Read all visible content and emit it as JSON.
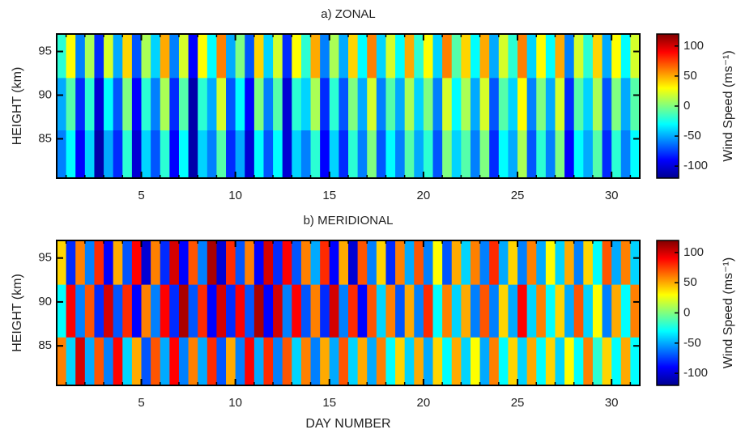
{
  "chart_data": [
    {
      "type": "heatmap",
      "title": "a) ZONAL",
      "ylabel": "HEIGHT (km)",
      "colorbar_label": "Wind Speed (ms⁻¹)",
      "colormap": "jet",
      "xlim": [
        0.5,
        31.5
      ],
      "ylim": [
        80.5,
        97
      ],
      "clim": [
        -120,
        120
      ],
      "xticks": [
        5,
        10,
        15,
        20,
        25,
        30
      ],
      "xminorticks": [
        1,
        2,
        3,
        4,
        5,
        6,
        7,
        8,
        9,
        10,
        11,
        12,
        13,
        14,
        15,
        16,
        17,
        18,
        19,
        20,
        21,
        22,
        23,
        24,
        25,
        26,
        27,
        28,
        29,
        30,
        31
      ],
      "yticks": [
        85,
        90,
        95
      ],
      "cticks": [
        -100,
        -50,
        0,
        50,
        100
      ],
      "x": [
        0.75,
        1.25,
        1.75,
        2.25,
        2.75,
        3.25,
        3.75,
        4.25,
        4.75,
        5.25,
        5.75,
        6.25,
        6.75,
        7.25,
        7.75,
        8.25,
        8.75,
        9.25,
        9.75,
        10.25,
        10.75,
        11.25,
        11.75,
        12.25,
        12.75,
        13.25,
        13.75,
        14.25,
        14.75,
        15.25,
        15.75,
        16.25,
        16.75,
        17.25,
        17.75,
        18.25,
        18.75,
        19.25,
        19.75,
        20.25,
        20.75,
        21.25,
        21.75,
        22.25,
        22.75,
        23.25,
        23.75,
        24.25,
        24.75,
        25.25,
        25.75,
        26.25,
        26.75,
        27.25,
        27.75,
        28.25,
        28.75,
        29.25,
        29.75,
        30.25,
        30.75,
        31.25
      ],
      "y": [
        83,
        89,
        95
      ],
      "z": [
        [
          -60,
          -30,
          -90,
          -40,
          -110,
          -50,
          -80,
          -20,
          -100,
          -40,
          -70,
          -20,
          -90,
          -30,
          -110,
          -40,
          -60,
          -10,
          -80,
          -50,
          -100,
          -30,
          -70,
          -30,
          -100,
          -40,
          -60,
          -20,
          -90,
          -40,
          -80,
          -20,
          -60,
          0,
          -70,
          -30,
          -60,
          -10,
          -50,
          -20,
          -70,
          0,
          -40,
          -10,
          -60,
          0,
          -80,
          -30,
          -50,
          10,
          -70,
          -20,
          -60,
          0,
          -90,
          -30,
          -50,
          -10,
          -80,
          -20,
          -60,
          -30
        ],
        [
          -50,
          -10,
          -80,
          -20,
          -100,
          -30,
          -70,
          0,
          -90,
          -20,
          -60,
          10,
          -80,
          -10,
          -110,
          -20,
          -50,
          20,
          -70,
          -30,
          -90,
          0,
          -60,
          -10,
          -100,
          -20,
          -40,
          10,
          -80,
          -20,
          -70,
          0,
          -50,
          20,
          -60,
          -10,
          -50,
          10,
          -40,
          0,
          -60,
          20,
          -30,
          10,
          -50,
          20,
          -70,
          -10,
          -40,
          30,
          -60,
          0,
          -50,
          20,
          -80,
          -10,
          -40,
          10,
          -70,
          0,
          -50,
          -10
        ],
        [
          -20,
          30,
          -60,
          10,
          -80,
          20,
          -50,
          40,
          -70,
          10,
          -40,
          50,
          -60,
          20,
          -90,
          30,
          -30,
          60,
          -50,
          0,
          -70,
          40,
          -40,
          20,
          -80,
          30,
          -20,
          50,
          -60,
          10,
          -50,
          40,
          -30,
          60,
          -40,
          20,
          -30,
          50,
          -20,
          30,
          -40,
          60,
          -10,
          40,
          -30,
          50,
          -50,
          20,
          -20,
          60,
          -40,
          30,
          -30,
          50,
          -60,
          20,
          -20,
          40,
          -50,
          30,
          -30,
          20
        ]
      ]
    },
    {
      "type": "heatmap",
      "title": "b) MERIDIONAL",
      "ylabel": "HEIGHT (km)",
      "xlabel": "DAY NUMBER",
      "colorbar_label": "Wind Speed (ms⁻¹)",
      "colormap": "jet",
      "xlim": [
        0.5,
        31.5
      ],
      "ylim": [
        80.5,
        97
      ],
      "clim": [
        -120,
        120
      ],
      "xticks": [
        5,
        10,
        15,
        20,
        25,
        30
      ],
      "xminorticks": [
        1,
        2,
        3,
        4,
        5,
        6,
        7,
        8,
        9,
        10,
        11,
        12,
        13,
        14,
        15,
        16,
        17,
        18,
        19,
        20,
        21,
        22,
        23,
        24,
        25,
        26,
        27,
        28,
        29,
        30,
        31
      ],
      "yticks": [
        85,
        90,
        95
      ],
      "cticks": [
        -100,
        -50,
        0,
        50,
        100
      ],
      "x": [
        0.75,
        1.25,
        1.75,
        2.25,
        2.75,
        3.25,
        3.75,
        4.25,
        4.75,
        5.25,
        5.75,
        6.25,
        6.75,
        7.25,
        7.75,
        8.25,
        8.75,
        9.25,
        9.75,
        10.25,
        10.75,
        11.25,
        11.75,
        12.25,
        12.75,
        13.25,
        13.75,
        14.25,
        14.75,
        15.25,
        15.75,
        16.25,
        16.75,
        17.25,
        17.75,
        18.25,
        18.75,
        19.25,
        19.75,
        20.25,
        20.75,
        21.25,
        21.75,
        22.25,
        22.75,
        23.25,
        23.75,
        24.25,
        24.75,
        25.25,
        25.75,
        26.25,
        26.75,
        27.25,
        27.75,
        28.25,
        28.75,
        29.25,
        29.75,
        30.25,
        30.75,
        31.25
      ],
      "y": [
        83,
        89,
        95
      ],
      "z": [
        [
          60,
          -40,
          100,
          -50,
          70,
          -60,
          90,
          -40,
          50,
          -70,
          70,
          -50,
          90,
          -60,
          60,
          -50,
          80,
          -70,
          50,
          -60,
          90,
          -50,
          80,
          -60,
          70,
          -40,
          60,
          -60,
          50,
          -50,
          70,
          -40,
          50,
          -50,
          60,
          -30,
          40,
          -40,
          50,
          -50,
          40,
          -30,
          50,
          -40,
          30,
          -50,
          60,
          -30,
          40,
          -40,
          50,
          -30,
          40,
          -40,
          30,
          -30,
          60,
          -20,
          40,
          -30,
          50,
          -30
        ],
        [
          -30,
          90,
          -60,
          70,
          -80,
          100,
          -70,
          80,
          -90,
          60,
          -60,
          90,
          -80,
          110,
          -70,
          80,
          -90,
          100,
          -80,
          90,
          -70,
          110,
          -90,
          100,
          -60,
          90,
          -70,
          60,
          -80,
          100,
          -60,
          80,
          -90,
          70,
          -40,
          60,
          -70,
          50,
          -60,
          80,
          -30,
          60,
          -40,
          50,
          -60,
          70,
          -60,
          40,
          -50,
          90,
          -40,
          60,
          -30,
          40,
          -50,
          70,
          -40,
          30,
          -60,
          50,
          -30,
          60
        ],
        [
          40,
          -80,
          60,
          -60,
          80,
          -90,
          50,
          -70,
          90,
          -100,
          60,
          -80,
          100,
          -90,
          70,
          -60,
          110,
          -100,
          80,
          -70,
          60,
          -90,
          100,
          -80,
          90,
          -70,
          60,
          -50,
          80,
          -90,
          50,
          -100,
          70,
          -60,
          40,
          -80,
          60,
          -50,
          70,
          -60,
          30,
          -70,
          50,
          -40,
          60,
          -60,
          80,
          -50,
          40,
          -60,
          60,
          -50,
          30,
          -40,
          50,
          -60,
          40,
          -30,
          70,
          -50,
          60,
          -40
        ]
      ]
    }
  ]
}
